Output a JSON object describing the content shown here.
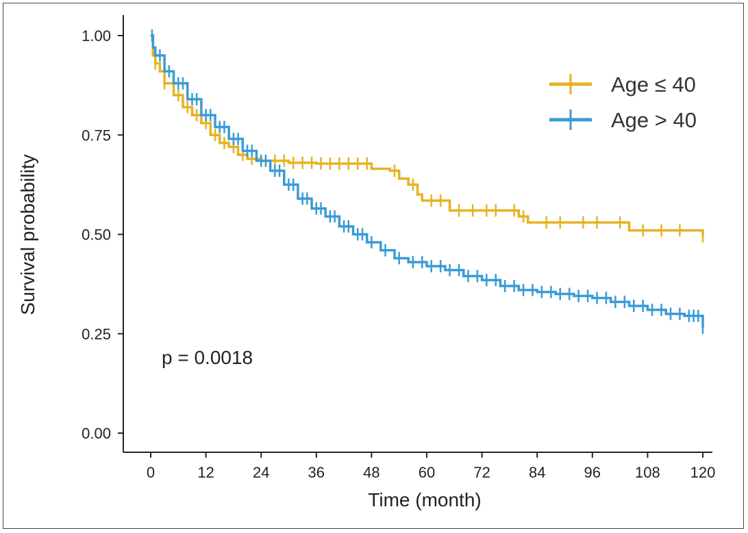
{
  "chart_data": {
    "type": "line",
    "subtype": "kaplan-meier",
    "title": "",
    "xlabel": "Time (month)",
    "ylabel": "Survival probability",
    "xlim": [
      0,
      120
    ],
    "ylim": [
      0,
      1
    ],
    "xticks": [
      0,
      12,
      24,
      36,
      48,
      60,
      72,
      84,
      96,
      108,
      120
    ],
    "yticks": [
      0,
      0.25,
      0.5,
      0.75,
      1
    ],
    "ytick_labels": [
      "0.00",
      "0.25",
      "0.50",
      "0.75",
      "1.00"
    ],
    "xtick_labels": [
      "0",
      "12",
      "24",
      "36",
      "48",
      "60",
      "72",
      "84",
      "96",
      "108",
      "120"
    ],
    "legend_position": "top-right",
    "annotation": "p = 0.0018",
    "series": [
      {
        "name": "Age ≤ 40",
        "color": "#E6B222",
        "points": [
          [
            0,
            1.0
          ],
          [
            0.5,
            0.95
          ],
          [
            1,
            0.93
          ],
          [
            2,
            0.91
          ],
          [
            3,
            0.88
          ],
          [
            5,
            0.85
          ],
          [
            7,
            0.82
          ],
          [
            9,
            0.8
          ],
          [
            11,
            0.78
          ],
          [
            13,
            0.75
          ],
          [
            15,
            0.73
          ],
          [
            17,
            0.72
          ],
          [
            19,
            0.7
          ],
          [
            21,
            0.69
          ],
          [
            24,
            0.685
          ],
          [
            30,
            0.68
          ],
          [
            36,
            0.678
          ],
          [
            42,
            0.678
          ],
          [
            47,
            0.678
          ],
          [
            48,
            0.665
          ],
          [
            52,
            0.66
          ],
          [
            54,
            0.64
          ],
          [
            56,
            0.625
          ],
          [
            58,
            0.6
          ],
          [
            59,
            0.585
          ],
          [
            64,
            0.585
          ],
          [
            65,
            0.56
          ],
          [
            76,
            0.56
          ],
          [
            80,
            0.545
          ],
          [
            82,
            0.53
          ],
          [
            92,
            0.53
          ],
          [
            102,
            0.53
          ],
          [
            104,
            0.51
          ],
          [
            120,
            0.51
          ],
          [
            120,
            0.495
          ]
        ],
        "censor_x": [
          1,
          3,
          6,
          8,
          10,
          12,
          14,
          16,
          18,
          20,
          22,
          25,
          27,
          29,
          31,
          33,
          35,
          37,
          39,
          41,
          43,
          45,
          47,
          53,
          57,
          61,
          63,
          67,
          70,
          73,
          75,
          79,
          81,
          86,
          89,
          94,
          97,
          102,
          107,
          111,
          115,
          120
        ]
      },
      {
        "name": "Age > 40",
        "color": "#3A9BD5",
        "points": [
          [
            0,
            1.0
          ],
          [
            0.5,
            0.97
          ],
          [
            1,
            0.95
          ],
          [
            3,
            0.91
          ],
          [
            5,
            0.88
          ],
          [
            8,
            0.84
          ],
          [
            11,
            0.8
          ],
          [
            14,
            0.77
          ],
          [
            17,
            0.74
          ],
          [
            20,
            0.71
          ],
          [
            23,
            0.685
          ],
          [
            26,
            0.66
          ],
          [
            29,
            0.625
          ],
          [
            32,
            0.59
          ],
          [
            35,
            0.565
          ],
          [
            38,
            0.545
          ],
          [
            41,
            0.52
          ],
          [
            44,
            0.5
          ],
          [
            47,
            0.48
          ],
          [
            50,
            0.46
          ],
          [
            53,
            0.44
          ],
          [
            56,
            0.43
          ],
          [
            60,
            0.42
          ],
          [
            64,
            0.41
          ],
          [
            68,
            0.395
          ],
          [
            72,
            0.385
          ],
          [
            76,
            0.37
          ],
          [
            80,
            0.36
          ],
          [
            84,
            0.355
          ],
          [
            88,
            0.35
          ],
          [
            92,
            0.345
          ],
          [
            96,
            0.34
          ],
          [
            100,
            0.33
          ],
          [
            104,
            0.32
          ],
          [
            108,
            0.31
          ],
          [
            112,
            0.3
          ],
          [
            116,
            0.295
          ],
          [
            120,
            0.295
          ],
          [
            120,
            0.265
          ]
        ],
        "censor_x": [
          0.3,
          2,
          4,
          6,
          7,
          9,
          10,
          12,
          13,
          15,
          16,
          18,
          19,
          21,
          22,
          24,
          25,
          27,
          28,
          30,
          31,
          33,
          34,
          36,
          37,
          39,
          40,
          42,
          43,
          45,
          46,
          48,
          51,
          54,
          57,
          59,
          61,
          63,
          65,
          67,
          69,
          71,
          73,
          75,
          77,
          79,
          81,
          83,
          85,
          87,
          89,
          91,
          93,
          95,
          97,
          99,
          101,
          103,
          105,
          107,
          109,
          111,
          113,
          115,
          117,
          118,
          119,
          120
        ]
      }
    ]
  }
}
